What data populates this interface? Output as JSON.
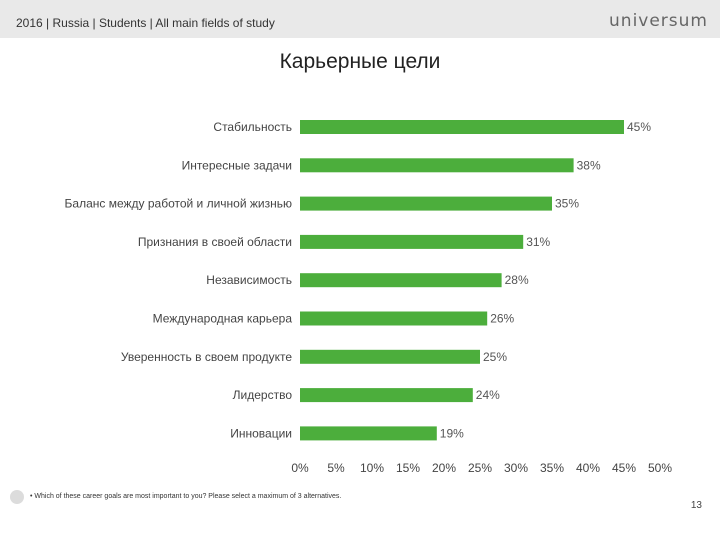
{
  "header": {
    "text": "2016 | Russia | Students | All main fields of study",
    "logo": "universum"
  },
  "chart_data": {
    "type": "bar",
    "orientation": "horizontal",
    "title": "Карьерные цели",
    "categories": [
      "Стабильность",
      "Интересные задачи",
      "Баланс между работой и личной жизнью",
      "Признания в своей области",
      "Независимость",
      "Международная карьера",
      "Уверенность в своем продукте",
      "Лидерство",
      "Инновации"
    ],
    "values": [
      45,
      38,
      35,
      31,
      28,
      26,
      25,
      24,
      19
    ],
    "value_labels": [
      "45%",
      "38%",
      "35%",
      "31%",
      "28%",
      "26%",
      "25%",
      "24%",
      "19%"
    ],
    "xlim": [
      0,
      50
    ],
    "xticks": [
      0,
      5,
      10,
      15,
      20,
      25,
      30,
      35,
      40,
      45,
      50
    ],
    "xtick_labels": [
      "0%",
      "5%",
      "10%",
      "15%",
      "20%",
      "25%",
      "30%",
      "35%",
      "40%",
      "45%",
      "50%"
    ],
    "bar_color": "#4cae3c",
    "grid": false,
    "legend": "none"
  },
  "footer": {
    "note": "• Which of these career goals are most important to you? Please select a maximum of 3 alternatives.",
    "page_number": "13"
  }
}
